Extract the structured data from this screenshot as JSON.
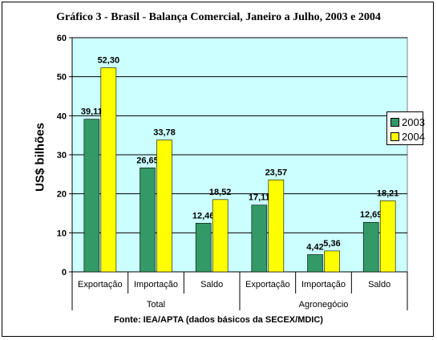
{
  "chart_data": {
    "type": "bar",
    "title": "Gráfico 3 - Brasil - Balança Comercial, Janeiro a Julho, 2003 e 2004",
    "ylabel": "US$ bilhões",
    "ylim": [
      0,
      60
    ],
    "yticks": [
      "0",
      "10",
      "20",
      "30",
      "40",
      "50",
      "60"
    ],
    "grid": true,
    "legend_position": "right",
    "source": "Fonte: IEA/APTA (dados básicos da SECEX/MDIC)",
    "categories": [
      "Exportação",
      "Importação",
      "Saldo",
      "Exportação",
      "Importação",
      "Saldo"
    ],
    "groups": [
      {
        "label": "Total",
        "categories": [
          "Exportação",
          "Importação",
          "Saldo"
        ]
      },
      {
        "label": "Agronegócio",
        "categories": [
          "Exportação",
          "Importação",
          "Saldo"
        ]
      }
    ],
    "series": [
      {
        "name": "2003",
        "color": "#339966",
        "values": [
          39.11,
          26.65,
          12.46,
          17.11,
          4.42,
          12.69
        ],
        "labels": [
          "39,11",
          "26,65",
          "12,46",
          "17,11",
          "4,42",
          "12,69"
        ]
      },
      {
        "name": "2004",
        "color": "#ffff00",
        "values": [
          52.3,
          33.78,
          18.52,
          23.57,
          5.36,
          18.21
        ],
        "labels": [
          "52,30",
          "33,78",
          "18,52",
          "23,57",
          "5,36",
          "18,21"
        ]
      }
    ],
    "plot_background": "#ccffff"
  }
}
